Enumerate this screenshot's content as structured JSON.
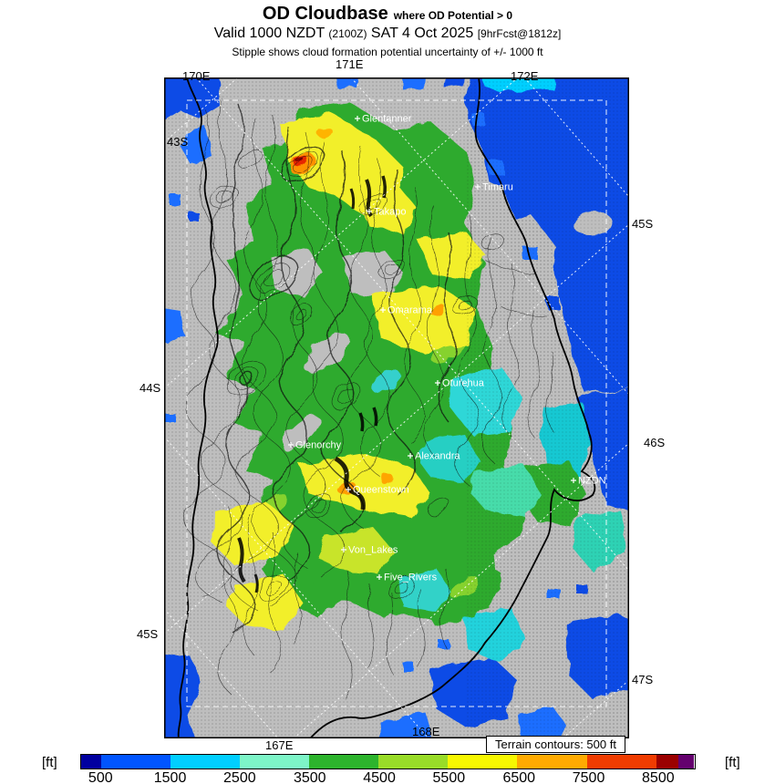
{
  "header": {
    "title": "OD Cloudbase",
    "title_qualifier": "where OD Potential > 0",
    "valid_prefix": "Valid 1000 NZDT",
    "valid_zulu": "(2100Z)",
    "valid_date": "SAT 4 Oct 2025",
    "forecast_ref": "[9hrFcst@1812z]",
    "stipple_note": "Stipple shows cloud formation potential uncertainty of +/- 1000 ft"
  },
  "map": {
    "axis": {
      "top": [
        "170E",
        "171E",
        "172E"
      ],
      "left": [
        "43S",
        "44S",
        "45S"
      ],
      "right": [
        "45S",
        "46S",
        "47S"
      ],
      "bottom": [
        "167E",
        "168E"
      ]
    },
    "places": [
      "Glentanner",
      "Timaru",
      "Takapo",
      "Omarama",
      "Oturehua",
      "Glenorchy",
      "Alexandra",
      "Queenstown",
      "NZDN",
      "Von_Lakes",
      "Five_Rivers"
    ],
    "terrain_note": "Terrain contours: 500 ft"
  },
  "colorbar": {
    "unit_left": "[ft]",
    "unit_right": "[ft]",
    "ticks": [
      "500",
      "1500",
      "2500",
      "3500",
      "4500",
      "5500",
      "6500",
      "7500",
      "8500"
    ],
    "tick_pos": [
      3.3,
      14.6,
      25.9,
      37.3,
      48.6,
      59.9,
      71.3,
      82.6,
      93.9
    ],
    "stops": [
      {
        "color": "#0000a0",
        "w": 3.3
      },
      {
        "color": "#0055ff",
        "w": 11.3
      },
      {
        "color": "#00cfff",
        "w": 11.3
      },
      {
        "color": "#7df5c8",
        "w": 11.3
      },
      {
        "color": "#2db42d",
        "w": 11.3
      },
      {
        "color": "#99dc28",
        "w": 11.3
      },
      {
        "color": "#f7f700",
        "w": 11.3
      },
      {
        "color": "#ffaa00",
        "w": 11.3
      },
      {
        "color": "#f03c00",
        "w": 11.3
      },
      {
        "color": "#9b0000",
        "w": 3.7
      },
      {
        "color": "#64006e",
        "w": 2.4
      }
    ]
  }
}
